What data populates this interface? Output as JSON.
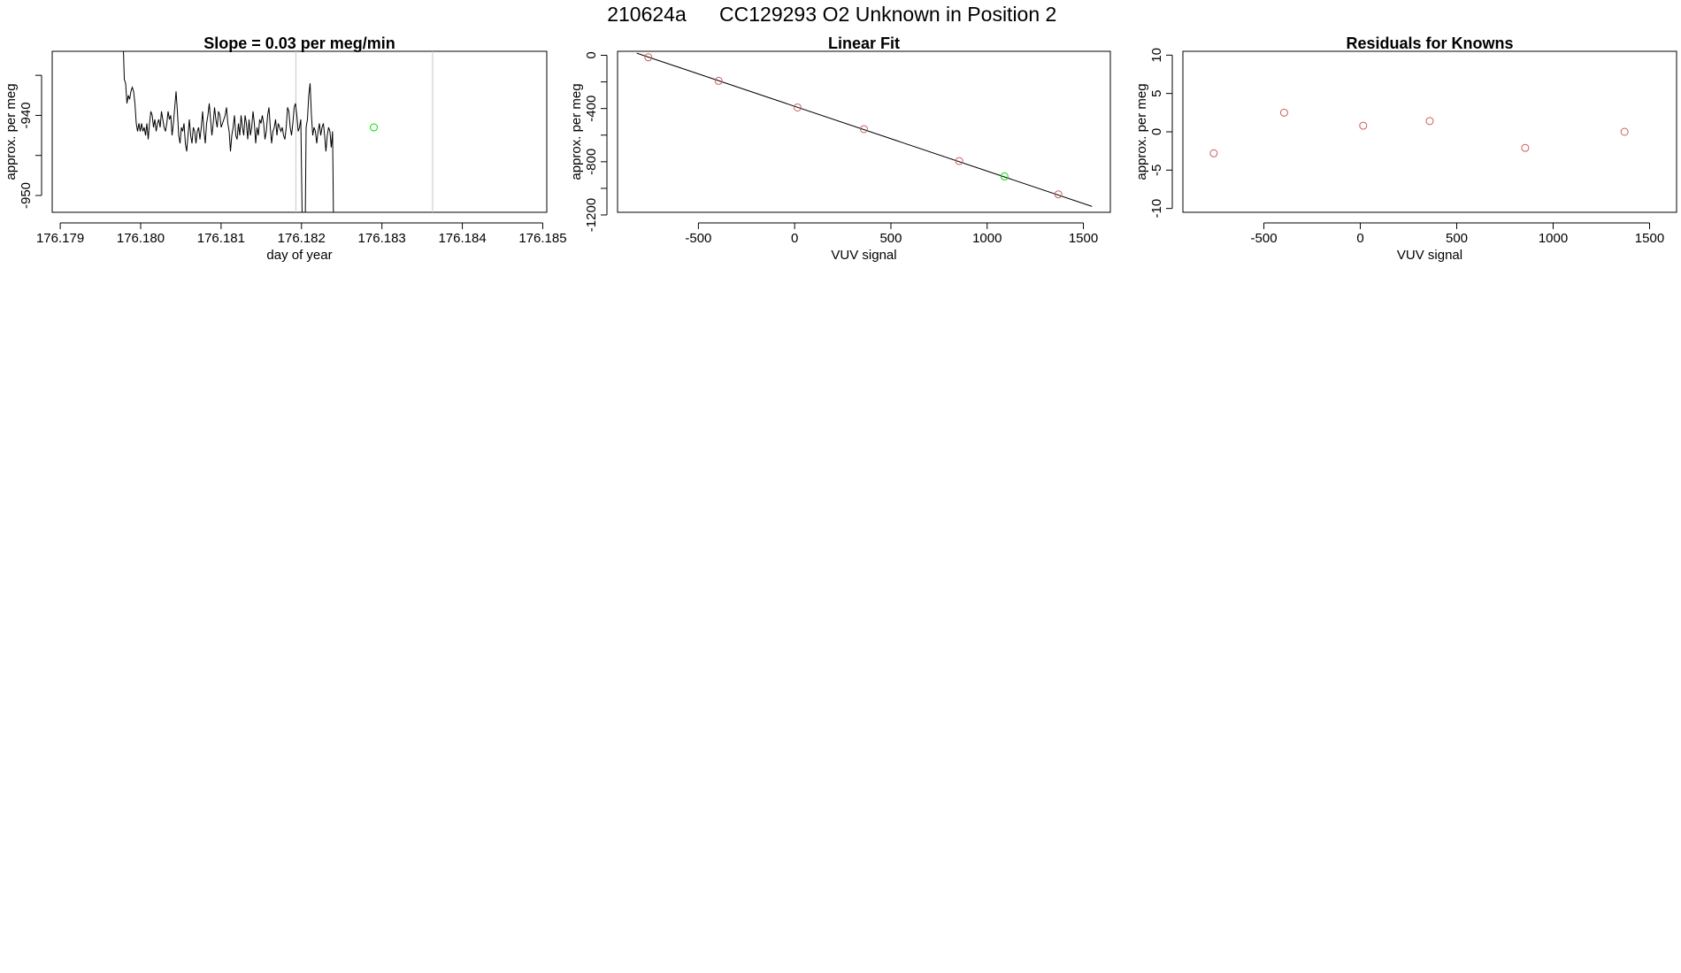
{
  "figure": {
    "run_id": "210624a",
    "cylinder_id": "CC129293",
    "description": "O2 Unknown in Position  2"
  },
  "chart_data": [
    {
      "type": "line",
      "title": "Slope =  0.03  per meg/min",
      "xlabel": "day of year",
      "ylabel": "approx. per meg",
      "xlim": [
        176.1789,
        176.18505
      ],
      "ylim": [
        -952.1,
        -932.0
      ],
      "x_ticks": [
        176.179,
        176.18,
        176.181,
        176.182,
        176.183,
        176.184,
        176.185
      ],
      "x_tick_labels": [
        "176.179",
        "176.180",
        "176.181",
        "176.182",
        "176.183",
        "176.184",
        "176.185"
      ],
      "y_ticks": [
        -950,
        -945,
        -940,
        -935
      ],
      "y_tick_labels": [
        "-950",
        "",
        "-940",
        ""
      ],
      "vlines": [
        176.18193,
        176.18363
      ],
      "series_x": {
        "start": 176.17978,
        "step": 1.65e-05
      },
      "series_y": [
        -930.0,
        -935.5,
        -936.0,
        -938.5,
        -937.5,
        -938.0,
        -937.0,
        -936.5,
        -937.0,
        -938.5,
        -941.0,
        -942.0,
        -941.0,
        -942.0,
        -941.0,
        -942.0,
        -941.5,
        -942.5,
        -941.0,
        -943.0,
        -941.0,
        -939.5,
        -940.0,
        -941.5,
        -940.5,
        -942.0,
        -941.0,
        -940.5,
        -941.5,
        -939.5,
        -940.5,
        -941.5,
        -942.0,
        -941.0,
        -939.5,
        -940.5,
        -940.0,
        -942.5,
        -941.0,
        -939.0,
        -937.0,
        -939.5,
        -942.5,
        -943.5,
        -941.5,
        -942.0,
        -941.0,
        -943.5,
        -944.5,
        -942.5,
        -940.5,
        -942.5,
        -943.5,
        -941.5,
        -942.0,
        -943.5,
        -942.0,
        -941.5,
        -943.0,
        -941.5,
        -939.5,
        -942.0,
        -943.5,
        -941.0,
        -940.0,
        -938.5,
        -940.5,
        -942.5,
        -941.0,
        -939.0,
        -940.5,
        -941.5,
        -939.5,
        -940.0,
        -941.5,
        -941.0,
        -940.5,
        -940.0,
        -939.0,
        -941.0,
        -942.0,
        -944.5,
        -942.5,
        -941.5,
        -940.0,
        -942.5,
        -943.0,
        -941.0,
        -942.5,
        -940.0,
        -941.5,
        -942.5,
        -940.0,
        -941.0,
        -943.0,
        -940.5,
        -942.5,
        -941.5,
        -939.5,
        -941.0,
        -943.5,
        -941.5,
        -942.5,
        -940.5,
        -941.0,
        -940.0,
        -941.0,
        -943.0,
        -942.0,
        -940.0,
        -939.0,
        -941.5,
        -943.5,
        -942.0,
        -941.5,
        -940.5,
        -942.5,
        -941.0,
        -941.5,
        -942.0,
        -941.5,
        -942.5,
        -943.0,
        -941.5,
        -939.0,
        -939.5,
        -941.5,
        -942.5,
        -941.0,
        -939.0,
        -938.5,
        -940.0,
        -942.0,
        -941.5,
        -940.5,
        -952.5,
        -952.5,
        -960.0,
        -941.5,
        -940.5,
        -937.5,
        -936.0,
        -940.0,
        -942.5,
        -941.5,
        -942.0,
        -943.5,
        -942.0,
        -941.0,
        -942.5,
        -941.5,
        -941.0,
        -942.5,
        -944.5,
        -942.5,
        -941.5,
        -942.0,
        -944.0,
        -942.0,
        -958.0
      ],
      "highlight_point": {
        "x": 176.1829,
        "y": -941.5,
        "color": "#00e000"
      },
      "line_color": "#000000"
    },
    {
      "type": "scatter",
      "title": "Linear Fit",
      "xlabel": "VUV signal",
      "ylabel": "approx. per meg",
      "xlim": [
        -920,
        1640
      ],
      "ylim": [
        -1180,
        30
      ],
      "x_ticks": [
        -500,
        0,
        500,
        1000,
        1500
      ],
      "x_tick_labels": [
        "-500",
        "0",
        "500",
        "1000",
        "1500"
      ],
      "y_ticks": [
        0,
        -200,
        -400,
        -600,
        -800,
        -1000,
        -1200
      ],
      "y_tick_labels": [
        "0",
        "",
        "-400",
        "",
        "-800",
        "",
        "-1200"
      ],
      "points": [
        {
          "x": -760,
          "y": -15
        },
        {
          "x": -395,
          "y": -192
        },
        {
          "x": 15,
          "y": -392
        },
        {
          "x": 360,
          "y": -555
        },
        {
          "x": 855,
          "y": -795
        },
        {
          "x": 1370,
          "y": -1045
        }
      ],
      "point_color": "#cd5c5c",
      "unknown_point": {
        "x": 1090,
        "y": -910,
        "color": "#00e000"
      },
      "fit_line": {
        "x": [
          -820,
          1545
        ],
        "y": [
          16,
          -1136
        ]
      }
    },
    {
      "type": "scatter",
      "title": "Residuals for Knowns",
      "xlabel": "VUV signal",
      "ylabel": "approx. per meg",
      "xlim": [
        -920,
        1640
      ],
      "ylim": [
        -10.5,
        10.5
      ],
      "x_ticks": [
        -500,
        0,
        500,
        1000,
        1500
      ],
      "x_tick_labels": [
        "-500",
        "0",
        "500",
        "1000",
        "1500"
      ],
      "y_ticks": [
        -10,
        -5,
        0,
        5,
        10
      ],
      "y_tick_labels": [
        "-10",
        "-5",
        "0",
        "5",
        "10"
      ],
      "points": [
        {
          "x": -760,
          "y": -2.8
        },
        {
          "x": -395,
          "y": 2.5
        },
        {
          "x": 15,
          "y": 0.8
        },
        {
          "x": 360,
          "y": 1.4
        },
        {
          "x": 855,
          "y": -2.1
        },
        {
          "x": 1370,
          "y": 0.0
        }
      ],
      "point_color": "#cd5c5c"
    }
  ]
}
